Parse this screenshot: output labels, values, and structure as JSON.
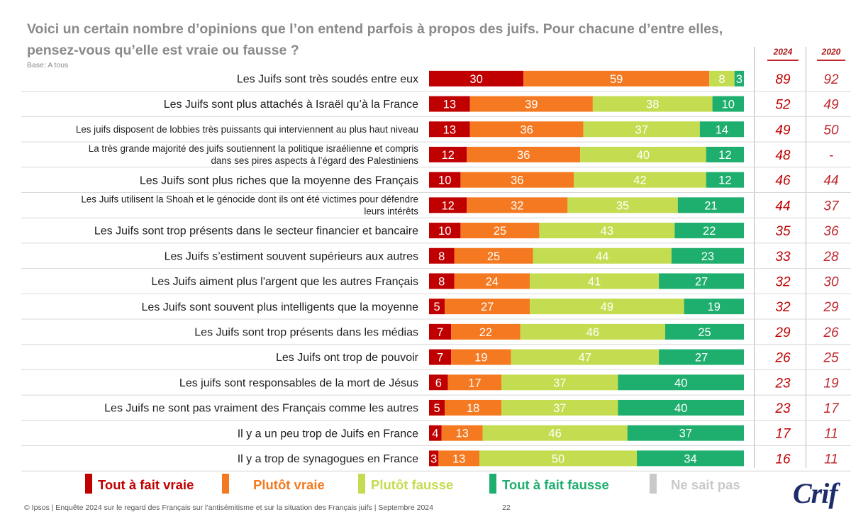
{
  "title": "Voici un certain nombre d’opinions que l’on entend parfois à propos des juifs. Pour chacune d’entre elles, pensez-vous qu’elle est vraie ou fausse ?",
  "base": "Base: A tous",
  "year_headers": [
    "2024",
    "2020"
  ],
  "colors": {
    "tout_vraie": "#c00000",
    "plutot_vraie": "#f47920",
    "plutot_fausse": "#c4dc4f",
    "tout_fausse": "#1eae6e",
    "nsp": "#c9c9c9",
    "year_2024": "#c00000",
    "year_2020": "#c0282d"
  },
  "legend": [
    {
      "label": "Tout à fait vraie",
      "color": "#c00000"
    },
    {
      "label": "Plutôt vraie",
      "color": "#f47920"
    },
    {
      "label": "Plutôt fausse",
      "color": "#c4dc4f"
    },
    {
      "label": "Tout à fait fausse",
      "color": "#1eae6e"
    },
    {
      "label": "Ne sait pas",
      "color": "#c9c9c9"
    }
  ],
  "logo": "Crif",
  "footer": "© Ipsos | Enquête 2024 sur le regard des Français sur l’antisémitisme et sur la situation des Français juifs | Septembre 2024",
  "page_number": "22",
  "chart_data": {
    "type": "bar",
    "orientation": "horizontal",
    "stacked": true,
    "xlim": [
      0,
      100
    ],
    "categories": [
      [
        "Les Juifs sont très soudés entre eux"
      ],
      [
        "Les Juifs sont plus attachés à Israël qu’à la France"
      ],
      [
        "Les juifs disposent de lobbies très puissants qui interviennent au plus haut niveau"
      ],
      [
        "La très grande majorité des juifs soutiennent la politique israélienne et compris",
        "dans ses pires aspects à l’égard des Palestiniens"
      ],
      [
        "Les Juifs sont plus riches que la moyenne des Français"
      ],
      [
        "Les Juifs utilisent la Shoah et le génocide dont ils ont été victimes pour défendre",
        "leurs intérêts"
      ],
      [
        "Les Juifs sont trop présents dans le secteur financier et bancaire"
      ],
      [
        "Les Juifs s’estiment souvent supérieurs aux autres"
      ],
      [
        "Les Juifs aiment plus l'argent que les autres Français"
      ],
      [
        "Les Juifs sont souvent plus intelligents que la moyenne"
      ],
      [
        "Les Juifs sont trop présents dans les médias"
      ],
      [
        "Les Juifs ont trop de pouvoir"
      ],
      [
        "Les juifs sont responsables de la mort de Jésus"
      ],
      [
        "Les Juifs ne sont pas vraiment des Français comme les autres"
      ],
      [
        "Il y a un peu trop de Juifs en France"
      ],
      [
        "Il y a trop de synagogues en France"
      ]
    ],
    "series": [
      {
        "name": "Tout à fait vraie",
        "color": "#c00000",
        "values": [
          30,
          13,
          13,
          12,
          10,
          12,
          10,
          8,
          8,
          5,
          7,
          7,
          6,
          5,
          4,
          3
        ]
      },
      {
        "name": "Plutôt vraie",
        "color": "#f47920",
        "values": [
          59,
          39,
          36,
          36,
          36,
          32,
          25,
          25,
          24,
          27,
          22,
          19,
          17,
          18,
          13,
          13
        ]
      },
      {
        "name": "Plutôt fausse",
        "color": "#c4dc4f",
        "values": [
          8,
          38,
          37,
          40,
          42,
          35,
          43,
          44,
          41,
          49,
          46,
          47,
          37,
          37,
          46,
          50
        ]
      },
      {
        "name": "Tout à fait fausse",
        "color": "#1eae6e",
        "values": [
          3,
          10,
          14,
          12,
          12,
          21,
          22,
          23,
          27,
          19,
          25,
          27,
          40,
          40,
          37,
          34
        ]
      },
      {
        "name": "Ne sait pas",
        "color": "#c9c9c9",
        "values": [
          0,
          0,
          0,
          0,
          0,
          0,
          0,
          0,
          0,
          0,
          0,
          0,
          0,
          0,
          0,
          0
        ]
      }
    ],
    "total_vraie": {
      "2024": [
        "89",
        "52",
        "49",
        "48",
        "46",
        "44",
        "35",
        "33",
        "32",
        "32",
        "29",
        "26",
        "23",
        "23",
        "17",
        "16"
      ],
      "2020": [
        "92",
        "49",
        "50",
        "-",
        "44",
        "37",
        "36",
        "28",
        "30",
        "29",
        "26",
        "25",
        "19",
        "17",
        "11",
        "11"
      ]
    },
    "legend_position": "bottom"
  }
}
